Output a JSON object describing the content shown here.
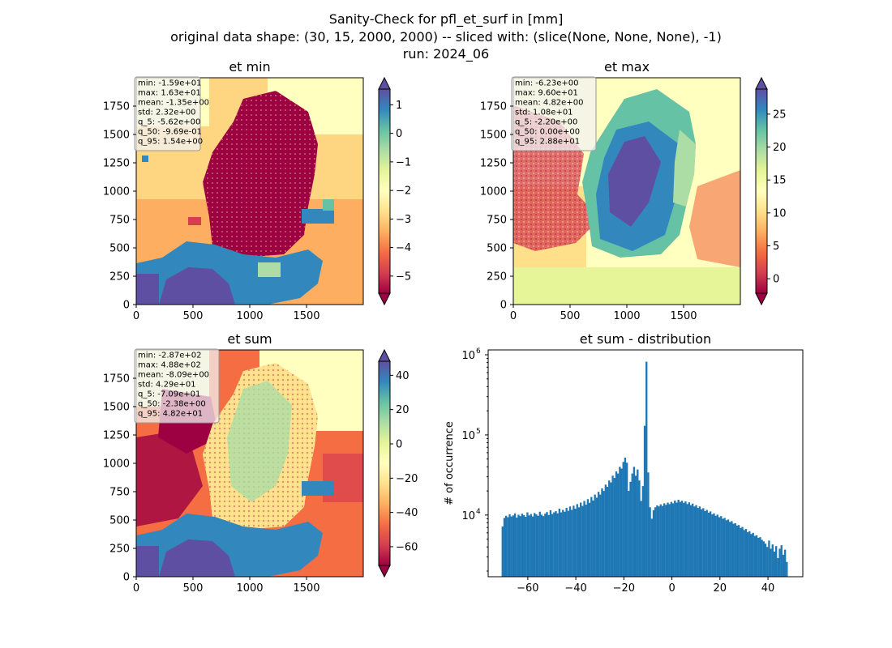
{
  "suptitle": [
    "Sanity-Check for pfl_et_surf in [mm]",
    "original data shape: (30, 15, 2000, 2000) -- sliced with: (slice(None, None, None), -1)",
    "run: 2024_06"
  ],
  "colors": {
    "hist_bar": "#1f77b4",
    "spectral": [
      "#9e0142",
      "#d53e4f",
      "#f46d43",
      "#fdae61",
      "#fee08b",
      "#ffffbf",
      "#e6f598",
      "#abdda4",
      "#66c2a5",
      "#3288bd",
      "#5e4fa2"
    ]
  },
  "chart_data": [
    {
      "type": "heatmap",
      "title": "et min",
      "xlim": [
        0,
        2000
      ],
      "ylim": [
        0,
        2000
      ],
      "xticks": [
        0,
        500,
        1000,
        1500
      ],
      "yticks": [
        0,
        250,
        500,
        750,
        1000,
        1250,
        1500,
        1750
      ],
      "colorbar": {
        "range": [
          -5.6,
          1.55
        ],
        "ticks": [
          1,
          0,
          -1,
          -2,
          -3,
          -4,
          -5
        ],
        "tick_labels": [
          "1",
          "0",
          "−1",
          "−2",
          "−3",
          "−4",
          "−5"
        ],
        "extend": "both",
        "colormap": "Spectral"
      },
      "stats": [
        "min: -1.59e+01",
        "max: 1.63e+01",
        "mean: -1.35e+00",
        "std: 2.32e+00",
        "q_5: -5.62e+00",
        "q_50: -9.69e-01",
        "q_95: 1.54e+00"
      ]
    },
    {
      "type": "heatmap",
      "title": "et max",
      "xlim": [
        0,
        2000
      ],
      "ylim": [
        0,
        2000
      ],
      "xticks": [
        0,
        500,
        1000,
        1500
      ],
      "yticks": [
        0,
        250,
        500,
        750,
        1000,
        1250,
        1500,
        1750
      ],
      "colorbar": {
        "range": [
          -2.2,
          28.8
        ],
        "ticks": [
          25,
          20,
          15,
          10,
          5,
          0
        ],
        "tick_labels": [
          "25",
          "20",
          "15",
          "10",
          "5",
          "0"
        ],
        "extend": "both",
        "colormap": "Spectral"
      },
      "stats": [
        "min: -6.23e+00",
        "max: 9.60e+01",
        "mean: 4.82e+00",
        "std: 1.08e+01",
        "q_5: -2.20e+00",
        "q_50: 0.00e+00",
        "q_95: 2.88e+01"
      ]
    },
    {
      "type": "heatmap",
      "title": "et sum",
      "xlim": [
        0,
        2000
      ],
      "ylim": [
        0,
        2000
      ],
      "xticks": [
        0,
        500,
        1000,
        1500
      ],
      "yticks": [
        0,
        250,
        500,
        750,
        1000,
        1250,
        1500,
        1750
      ],
      "colorbar": {
        "range": [
          -70.9,
          48.2
        ],
        "ticks": [
          40,
          20,
          0,
          -20,
          -40,
          -60
        ],
        "tick_labels": [
          "40",
          "20",
          "0",
          "−20",
          "−40",
          "−60"
        ],
        "extend": "both",
        "colormap": "Spectral"
      },
      "stats": [
        "min: -2.87e+02",
        "max: 4.88e+02",
        "mean: -8.09e+00",
        "std: 4.29e+01",
        "q_5: -7.09e+01",
        "q_50: -2.38e+00",
        "q_95: 4.82e+01"
      ]
    },
    {
      "type": "bar",
      "title": "et sum - distribution",
      "ylabel": "# of occurrence",
      "yscale": "log",
      "xlim": [
        -76.5,
        54.5
      ],
      "ylim": [
        1700,
        1150000
      ],
      "xticks": [
        -60,
        -40,
        -20,
        0,
        20,
        40
      ],
      "xtick_labels": [
        "−60",
        "−40",
        "−20",
        "0",
        "20",
        "40"
      ],
      "yticks": [
        10000,
        100000,
        1000000
      ],
      "ytick_labels": [
        "10",
        "10",
        "10"
      ],
      "ytick_exponents": [
        "4",
        "5",
        "6"
      ],
      "bin_range": [
        -70.9,
        48.2
      ],
      "counts": [
        7200,
        9200,
        9800,
        9400,
        10200,
        9600,
        9900,
        10500,
        9300,
        10100,
        9700,
        10400,
        10000,
        9500,
        10800,
        9900,
        10300,
        9600,
        10600,
        10200,
        9800,
        11000,
        10100,
        9700,
        10400,
        10900,
        10000,
        11500,
        10300,
        10800,
        11200,
        10500,
        12000,
        10800,
        11600,
        11000,
        12300,
        11300,
        12800,
        11600,
        13100,
        12000,
        13700,
        12500,
        14300,
        13000,
        15000,
        13500,
        15800,
        14200,
        16800,
        15200,
        18000,
        16500,
        19500,
        18000,
        21500,
        20000,
        24000,
        22500,
        27000,
        25500,
        31000,
        29000,
        35000,
        33000,
        40000,
        38000,
        46000,
        52000,
        45000,
        20000,
        26000,
        33000,
        40000,
        31000,
        37000,
        27000,
        15000,
        23000,
        130000,
        820000,
        34000,
        12500,
        9000,
        11500,
        12500,
        13200,
        12800,
        13600,
        13000,
        14000,
        13400,
        14300,
        13700,
        14600,
        14000,
        15200,
        14300,
        15500,
        14600,
        15100,
        14200,
        14800,
        13700,
        14400,
        13300,
        13900,
        12800,
        13300,
        12300,
        12800,
        11800,
        12200,
        11200,
        11600,
        10700,
        11100,
        10200,
        10500,
        9800,
        10100,
        9400,
        9700,
        9000,
        9200,
        8600,
        8800,
        8200,
        8400,
        7800,
        7900,
        7400,
        7500,
        6900,
        7100,
        6500,
        6700,
        6100,
        6300,
        5800,
        6000,
        5500,
        5600,
        5200,
        5300,
        4900,
        4700,
        4400,
        4000,
        4800,
        3800,
        4300,
        3500,
        4100,
        2900,
        3800,
        4200,
        3200,
        3700,
        2600
      ]
    }
  ]
}
